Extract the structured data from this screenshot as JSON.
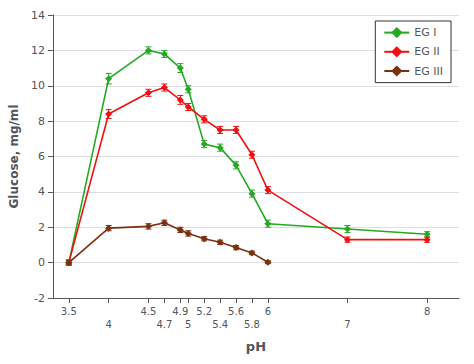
{
  "chart_data": {
    "type": "line",
    "xlabel": "pH",
    "ylabel": "Glucose, mg/ml",
    "x": [
      3.5,
      4.0,
      4.5,
      4.7,
      4.9,
      5.0,
      5.2,
      5.4,
      5.6,
      5.8,
      6.0,
      7.0,
      8.0
    ],
    "series": [
      {
        "name": "EG I",
        "color": "#22AA22",
        "values": [
          0.0,
          10.4,
          12.0,
          11.8,
          11.0,
          9.8,
          6.7,
          6.5,
          5.5,
          3.9,
          2.2,
          1.9,
          1.6
        ],
        "errors": [
          0.15,
          0.3,
          0.2,
          0.2,
          0.25,
          0.2,
          0.2,
          0.2,
          0.2,
          0.2,
          0.2,
          0.2,
          0.15
        ]
      },
      {
        "name": "EG II",
        "color": "#EE1111",
        "values": [
          0.0,
          8.4,
          9.6,
          9.9,
          9.2,
          8.8,
          8.1,
          7.5,
          7.5,
          6.1,
          4.1,
          1.3,
          1.3
        ],
        "errors": [
          0.15,
          0.25,
          0.2,
          0.2,
          0.25,
          0.2,
          0.2,
          0.2,
          0.2,
          0.2,
          0.2,
          0.15,
          0.15
        ]
      },
      {
        "name": "EG III",
        "color": "#7B3010",
        "values": [
          0.0,
          1.95,
          2.05,
          2.25,
          1.85,
          1.65,
          1.35,
          1.15,
          0.85,
          0.55,
          0.02,
          null,
          null
        ],
        "errors": [
          0.1,
          0.15,
          0.15,
          0.15,
          0.15,
          0.15,
          0.12,
          0.12,
          0.12,
          0.1,
          0.08,
          null,
          null
        ]
      }
    ],
    "xlim": [
      3.3,
      8.4
    ],
    "xticks": [
      3.5,
      4,
      4.5,
      4.7,
      4.9,
      5,
      5.2,
      5.4,
      5.6,
      5.8,
      6,
      7,
      8
    ],
    "ylim": [
      -2,
      14
    ],
    "yticks": [
      -2,
      0,
      2,
      4,
      6,
      8,
      10,
      12,
      14
    ],
    "grid": true,
    "legend": "upper right",
    "marker": "diamond",
    "line_style": "solid"
  }
}
